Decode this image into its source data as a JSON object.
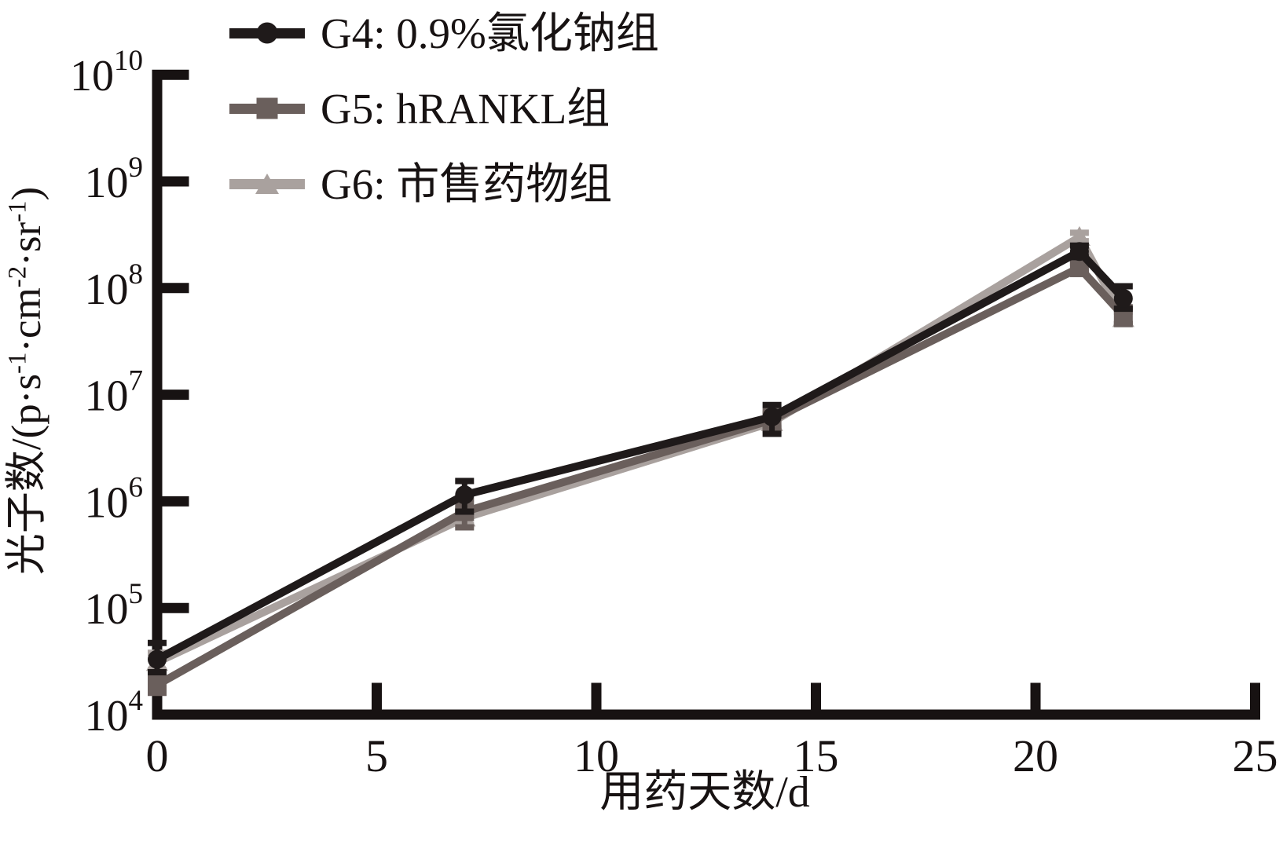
{
  "figure": {
    "background": "#ffffff",
    "ink_color": "#171212"
  },
  "chart_data": {
    "type": "line",
    "title": "",
    "xlabel": "用药天数/d",
    "ylabel": "光子数/(p·s⁻¹·cm⁻²·sr⁻¹)",
    "ylabel_segments": [
      {
        "t": "光子数/(p·s"
      },
      {
        "sup": "-1"
      },
      {
        "t": "·cm"
      },
      {
        "sup": "-2"
      },
      {
        "t": "·sr"
      },
      {
        "sup": "-1"
      },
      {
        "t": ")"
      }
    ],
    "x_axis": {
      "ticks": [
        0,
        5,
        10,
        15,
        20,
        25
      ],
      "lim": [
        0,
        25
      ],
      "scale": "linear"
    },
    "y_axis": {
      "tick_exponents": [
        4,
        5,
        6,
        7,
        8,
        9,
        10
      ],
      "lim": [
        10000,
        10000000000
      ],
      "scale": "log10"
    },
    "grid": false,
    "legend_position": "top-left",
    "x": [
      0,
      7,
      14,
      21,
      22
    ],
    "series": [
      {
        "name": "G4: 0.9%氯化钠组",
        "color": "#1f1a1a",
        "marker": "circle",
        "values": [
          33000,
          1150000,
          6200000,
          220000000,
          80000000
        ],
        "err_lo": [
          25000,
          800000,
          4300000,
          195000000,
          64000000
        ],
        "err_hi": [
          47000,
          1550000,
          8000000,
          250000000,
          104000000
        ]
      },
      {
        "name": "G5: hRANKL组",
        "color": "#6a5f5c",
        "marker": "square",
        "values": [
          19000,
          800000,
          5800000,
          155000000,
          55000000
        ],
        "err_lo": [
          16000,
          570000,
          4900000,
          140000000,
          46000000
        ],
        "err_hi": [
          24000,
          1050000,
          7000000,
          172000000,
          66000000
        ]
      },
      {
        "name": "G6: 市售药物组",
        "color": "#a9a19e",
        "marker": "triangle",
        "values": [
          31000,
          700000,
          5500000,
          300000000,
          52000000
        ],
        "err_lo": [
          26000,
          600000,
          4700000,
          275000000,
          46000000
        ],
        "err_hi": [
          38000,
          830000,
          6400000,
          330000000,
          60000000
        ]
      }
    ]
  }
}
